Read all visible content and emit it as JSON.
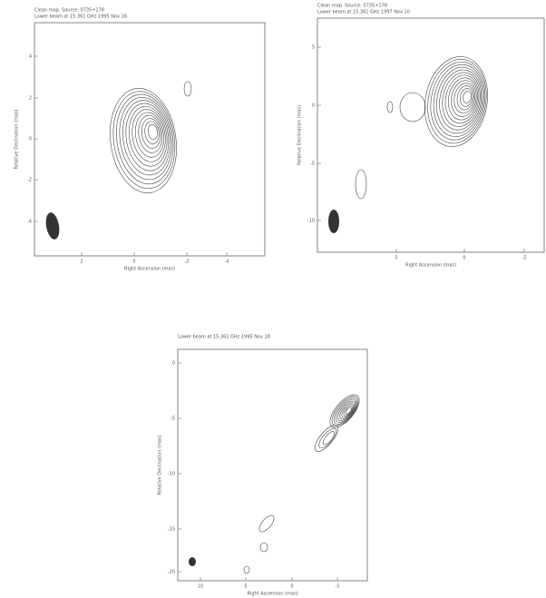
{
  "panels": [
    {
      "header": [
        "Clean map.  Source: 0735+178",
        "Lower beam at 15.361 GHz 1995 Nov 18"
      ],
      "xlabel": "Right Ascension (mas)",
      "ylabel": "Relative Declination (mas)",
      "xticks": [
        "2",
        "0",
        "-2",
        "-4"
      ],
      "yticks": [
        "4",
        "2",
        "0",
        "-2",
        "-4"
      ]
    },
    {
      "header": [
        "Clean map.  Source: 0735+178",
        "Lower beam at 15.361 GHz 1997 Nov 10"
      ],
      "xlabel": "Right Ascension (mas)",
      "ylabel": "Relative Declination (mas)",
      "xticks": [
        "5",
        "0",
        "-5"
      ],
      "yticks": [
        "5",
        "0",
        "-5",
        "-10"
      ]
    },
    {
      "header": [
        "Lower beam at 15.361 GHz 1995 Nov 18"
      ],
      "xlabel": "Right Ascension (mas)",
      "ylabel": "Relative Declination (mas)",
      "xticks": [
        "10",
        "5",
        "0",
        "-5"
      ],
      "yticks": [
        "0",
        "-5",
        "-10",
        "-15",
        "-20"
      ]
    }
  ]
}
